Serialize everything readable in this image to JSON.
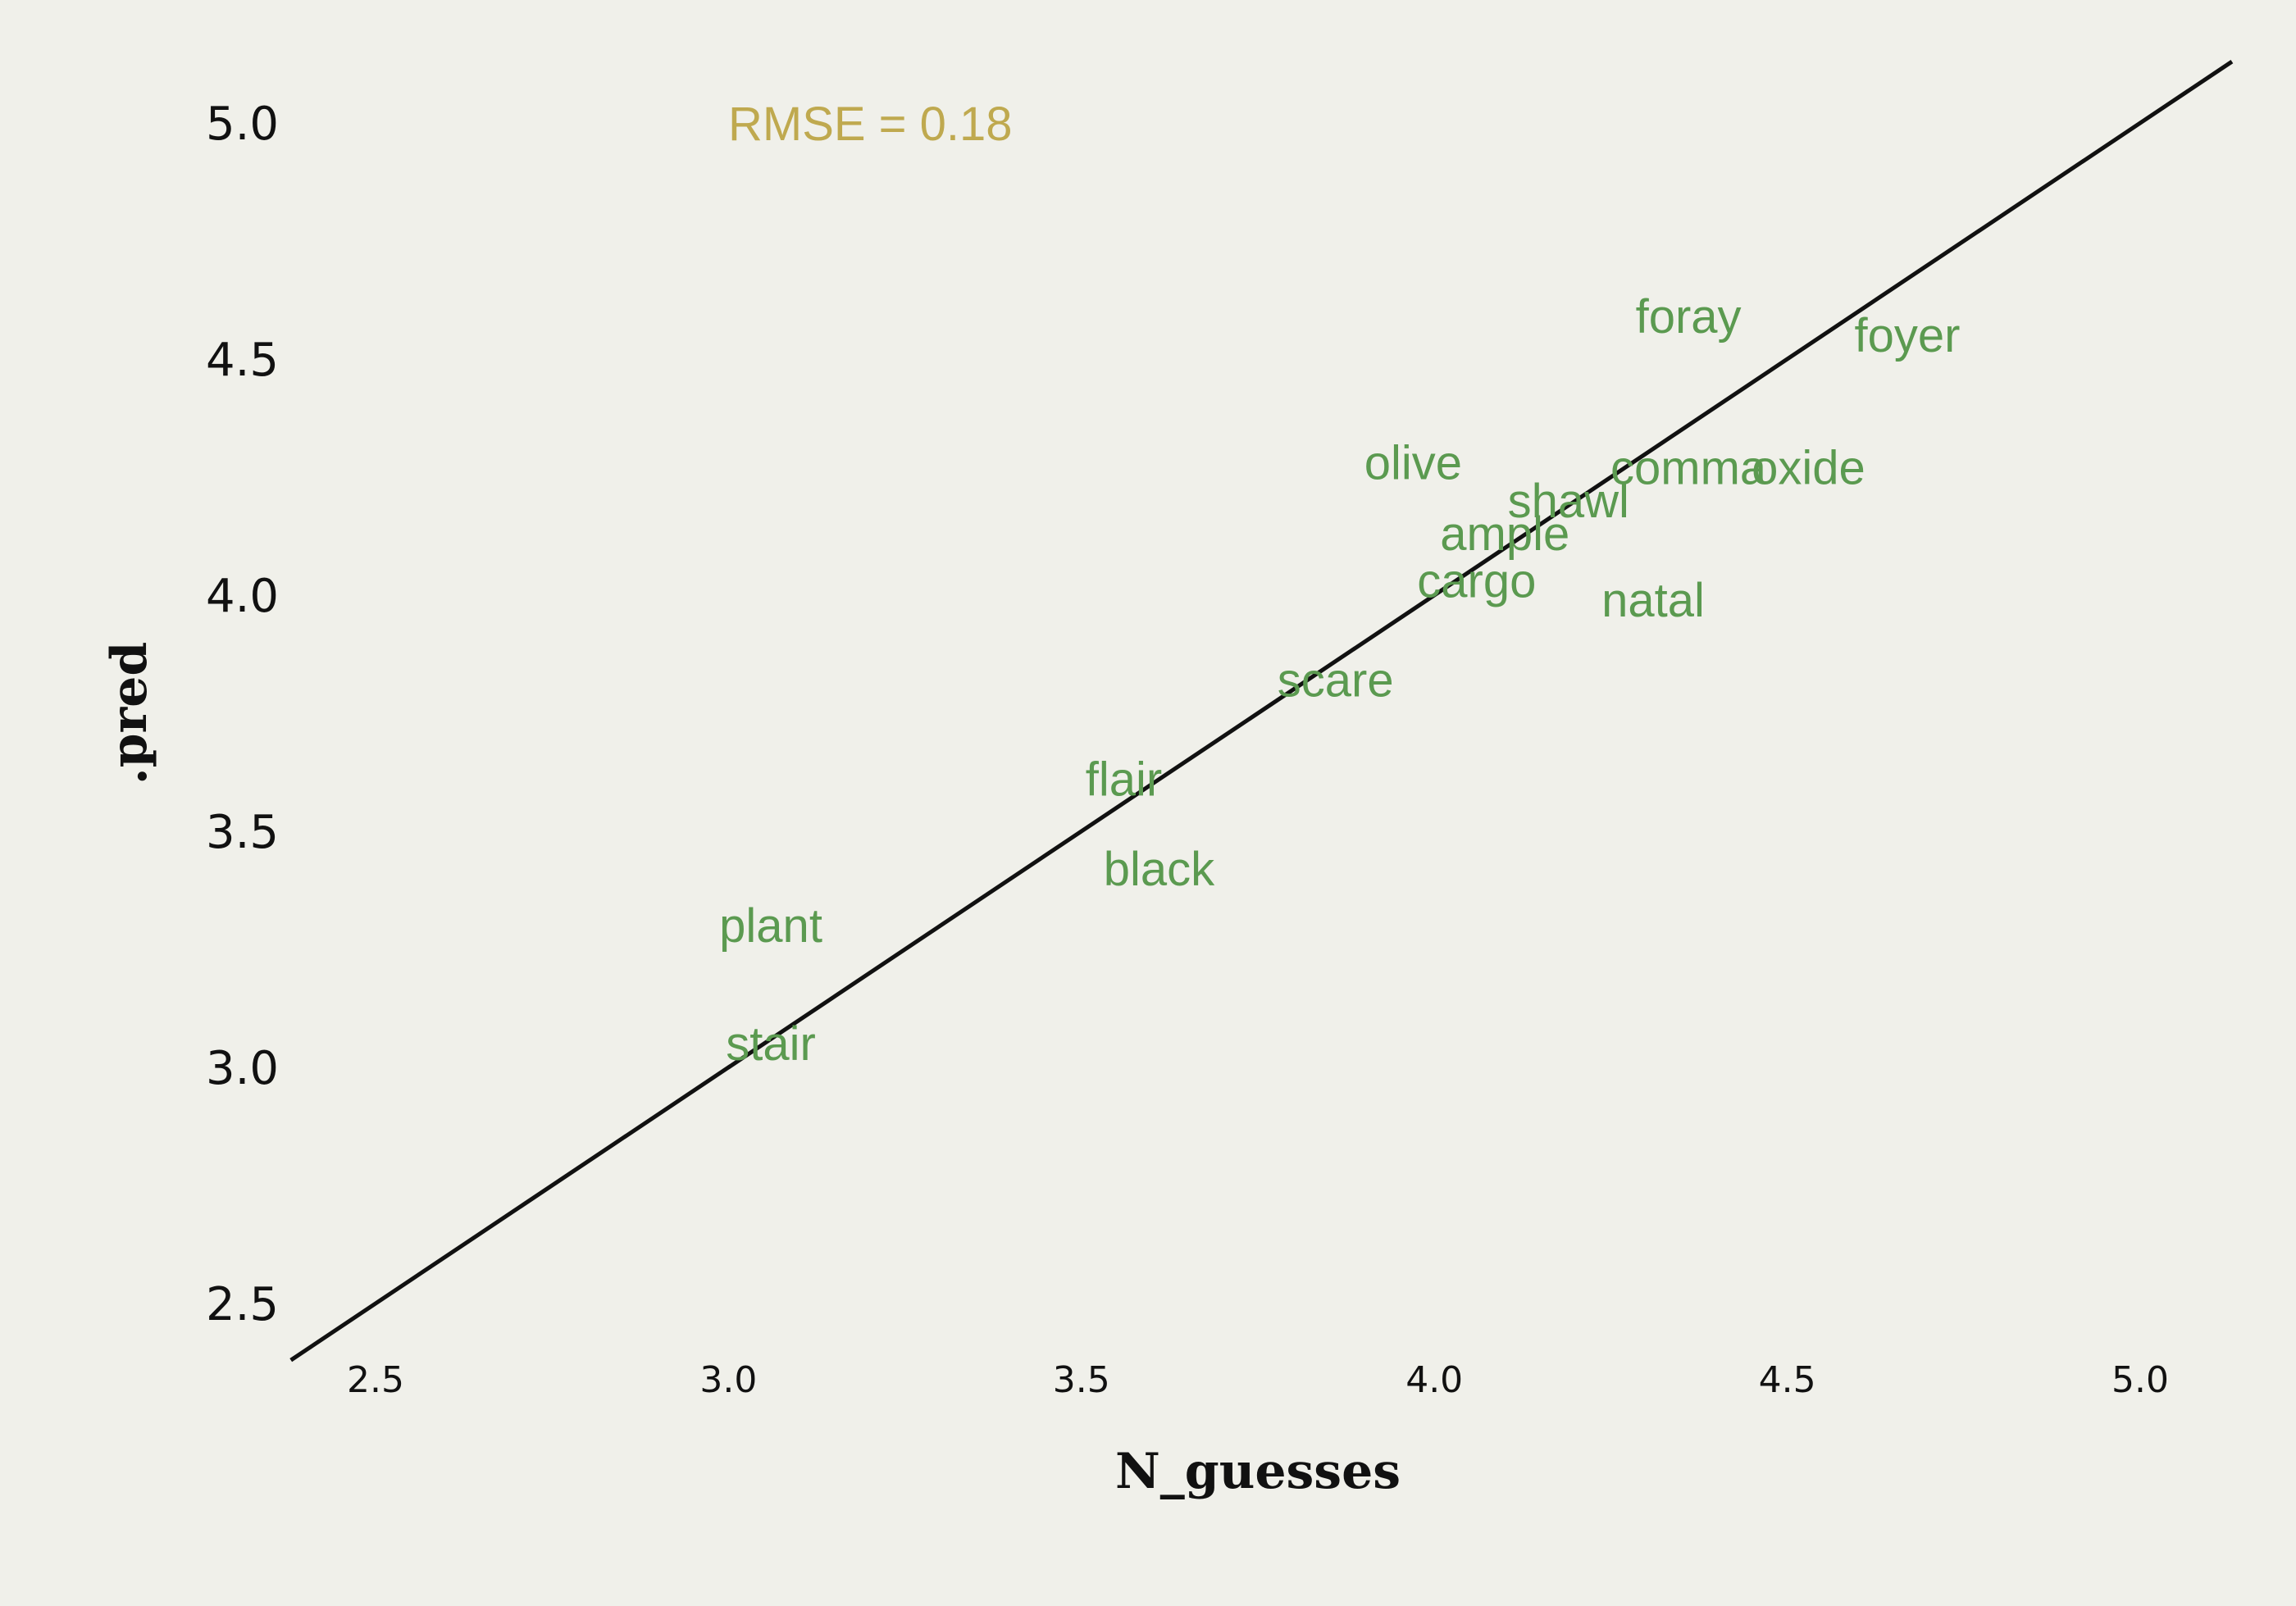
{
  "chart_data": {
    "type": "scatter",
    "title": "",
    "xlabel": "N_guesses",
    "ylabel": ".pred",
    "xlim": [
      2.38,
      5.13
    ],
    "ylim": [
      2.38,
      5.13
    ],
    "x_ticks": [
      "2.5",
      "3.0",
      "3.5",
      "4.0",
      "4.5",
      "5.0"
    ],
    "y_ticks": [
      "2.5",
      "3.0",
      "3.5",
      "4.0",
      "4.5",
      "5.0"
    ],
    "grid": false,
    "reference_line": "y = x",
    "annotation": "RMSE = 0.18",
    "points": [
      {
        "label": "foray",
        "x": 4.36,
        "y": 4.59
      },
      {
        "label": "foyer",
        "x": 4.67,
        "y": 4.55
      },
      {
        "label": "olive",
        "x": 3.97,
        "y": 4.28
      },
      {
        "label": "comma",
        "x": 4.36,
        "y": 4.27
      },
      {
        "label": "oxide",
        "x": 4.53,
        "y": 4.27
      },
      {
        "label": "shawl",
        "x": 4.19,
        "y": 4.2
      },
      {
        "label": "ample",
        "x": 4.1,
        "y": 4.13
      },
      {
        "label": "cargo",
        "x": 4.06,
        "y": 4.03
      },
      {
        "label": "natal",
        "x": 4.31,
        "y": 3.99
      },
      {
        "label": "scare",
        "x": 3.86,
        "y": 3.82
      },
      {
        "label": "flair",
        "x": 3.56,
        "y": 3.61
      },
      {
        "label": "black",
        "x": 3.61,
        "y": 3.42
      },
      {
        "label": "plant",
        "x": 3.06,
        "y": 3.3
      },
      {
        "label": "stair",
        "x": 3.06,
        "y": 3.05
      }
    ]
  },
  "colors": {
    "background": "#f0f0ea",
    "points": "#5b9a50",
    "annotation": "#bfa94f",
    "line": "#111111",
    "text": "#111111"
  }
}
